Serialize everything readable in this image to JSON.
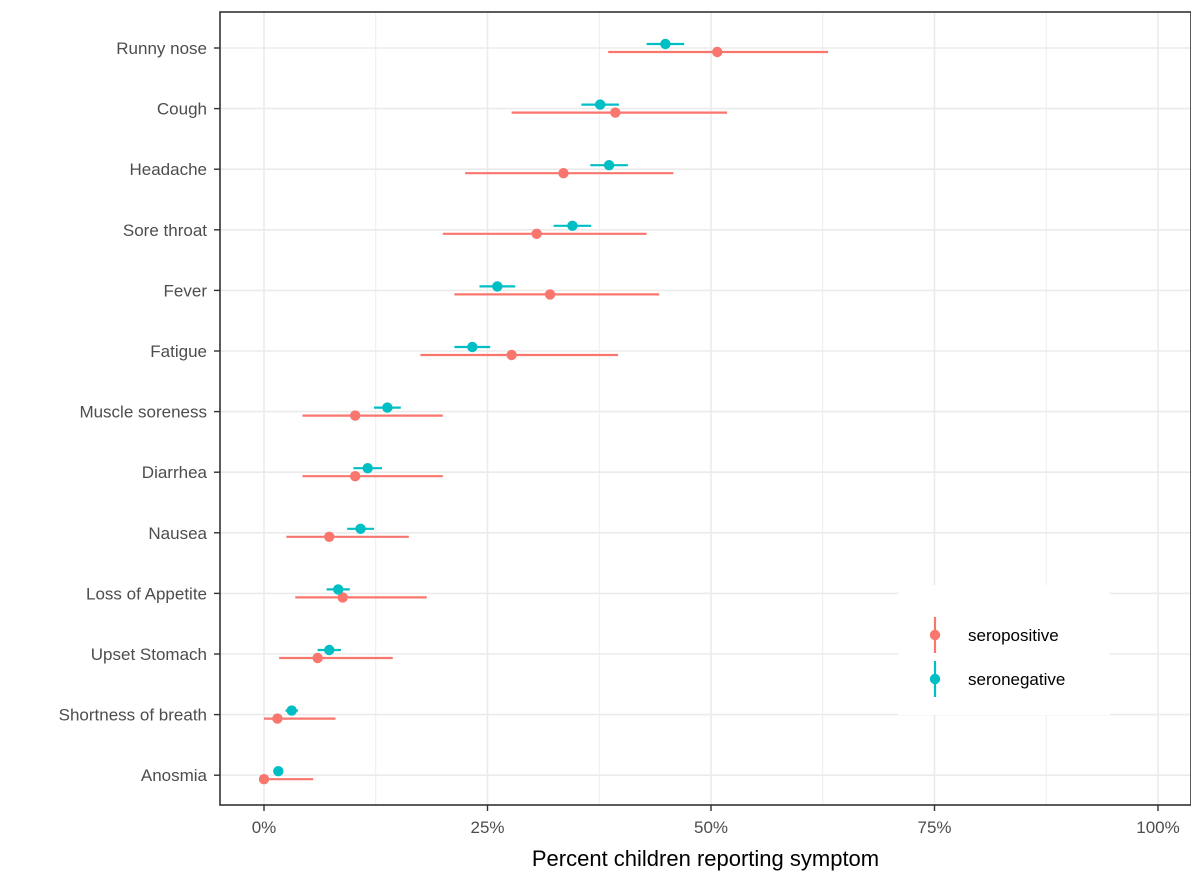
{
  "chart_data": {
    "type": "dot-errorbar",
    "title": "",
    "xlabel": "Percent children reporting symptom",
    "ylabel": "",
    "xlim": [
      -0.05,
      1.0
    ],
    "x_ticks": [
      0,
      0.25,
      0.5,
      0.75,
      1.0
    ],
    "x_tick_labels": [
      "0%",
      "25%",
      "50%",
      "75%",
      "100%"
    ],
    "grid": true,
    "legend_position": "bottom-right",
    "categories": [
      "Runny nose",
      "Cough",
      "Headache",
      "Sore throat",
      "Fever",
      "Fatigue",
      "Muscle soreness",
      "Diarrhea",
      "Nausea",
      "Loss of Appetite",
      "Upset Stomach",
      "Shortness of breath",
      "Anosmia"
    ],
    "series": [
      {
        "name": "seropositive",
        "color": "#F8766D",
        "estimate": [
          0.507,
          0.393,
          0.335,
          0.305,
          0.32,
          0.277,
          0.102,
          0.102,
          0.073,
          0.088,
          0.06,
          0.015,
          0.0
        ],
        "lower": [
          0.385,
          0.277,
          0.225,
          0.2,
          0.213,
          0.175,
          0.043,
          0.043,
          0.025,
          0.035,
          0.017,
          0.0,
          0.0
        ],
        "upper": [
          0.631,
          0.518,
          0.458,
          0.428,
          0.442,
          0.396,
          0.2,
          0.2,
          0.162,
          0.182,
          0.144,
          0.08,
          0.055
        ]
      },
      {
        "name": "seronegative",
        "color": "#00BFC4",
        "estimate": [
          0.449,
          0.376,
          0.386,
          0.345,
          0.261,
          0.233,
          0.138,
          0.116,
          0.108,
          0.083,
          0.073,
          0.031,
          0.016
        ],
        "lower": [
          0.428,
          0.355,
          0.365,
          0.324,
          0.241,
          0.213,
          0.123,
          0.1,
          0.093,
          0.07,
          0.06,
          0.024,
          0.012
        ],
        "upper": [
          0.47,
          0.397,
          0.407,
          0.366,
          0.281,
          0.253,
          0.153,
          0.132,
          0.123,
          0.096,
          0.086,
          0.038,
          0.02
        ]
      }
    ]
  }
}
